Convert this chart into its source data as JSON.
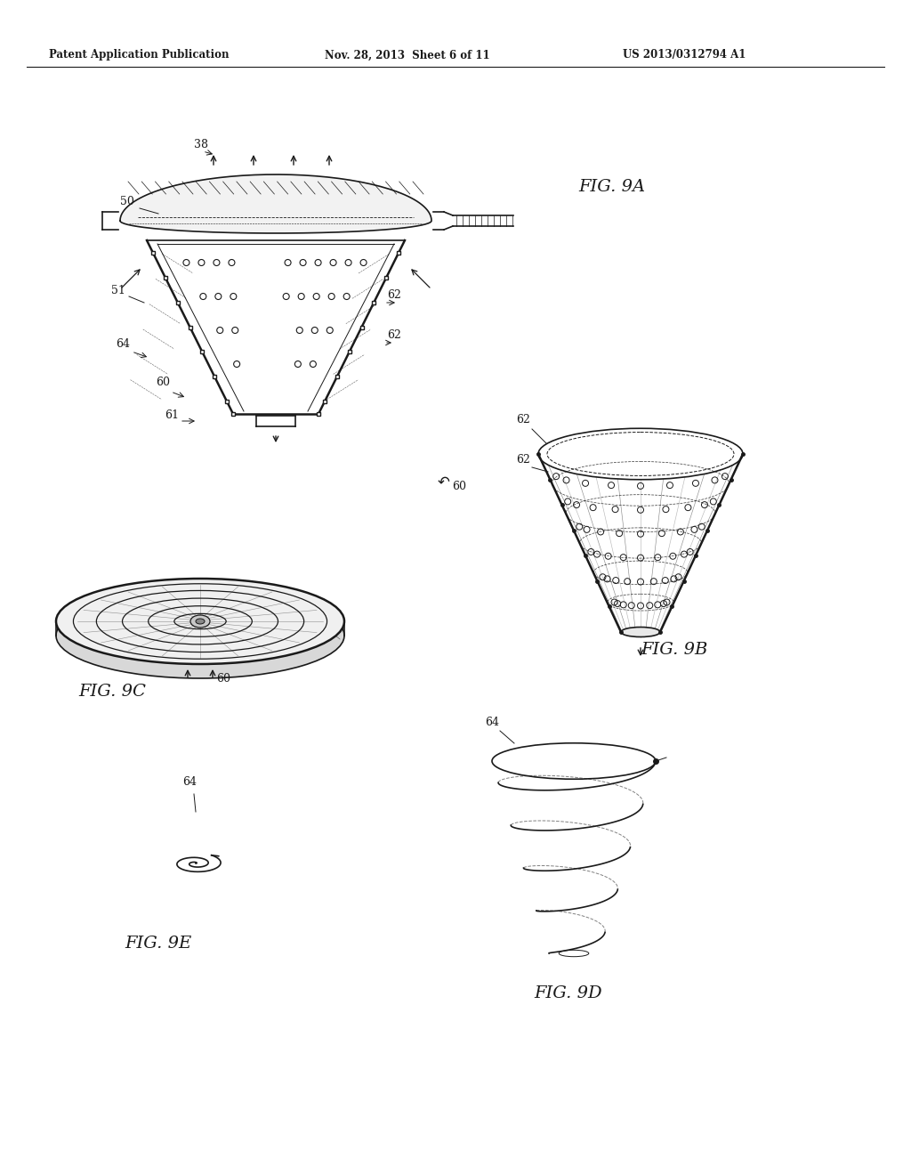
{
  "header_left": "Patent Application Publication",
  "header_mid": "Nov. 28, 2013  Sheet 6 of 11",
  "header_right": "US 2013/0312794 A1",
  "fig9a_label": "FIG. 9A",
  "fig9b_label": "FIG. 9B",
  "fig9c_label": "FIG. 9C",
  "fig9d_label": "FIG. 9D",
  "fig9e_label": "FIG. 9E",
  "bg_color": "#ffffff",
  "line_color": "#1a1a1a"
}
